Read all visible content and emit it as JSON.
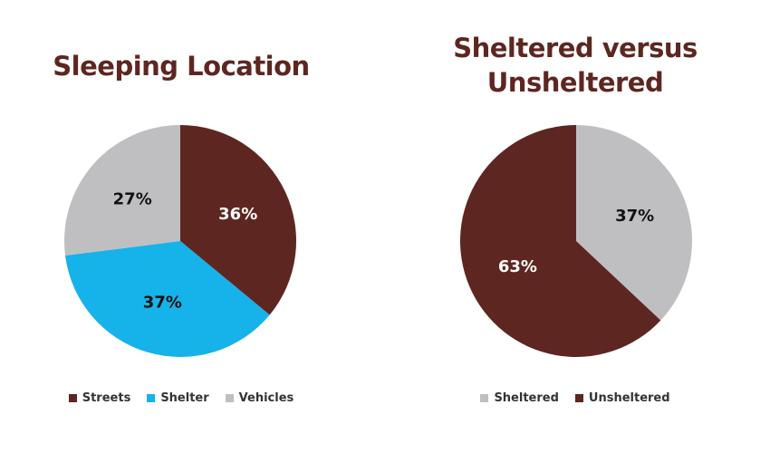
{
  "chart_data": [
    {
      "type": "pie",
      "title": "Sleeping Location",
      "categories": [
        "Streets",
        "Shelter",
        "Vehicles"
      ],
      "values": [
        36,
        37,
        27
      ],
      "labels": [
        "36%",
        "37%",
        "27%"
      ],
      "colors": [
        "#5e2620",
        "#16b2ea",
        "#bfbfc1"
      ],
      "label_colors": [
        "#ffffff",
        "#111111",
        "#111111"
      ],
      "legend_position": "bottom"
    },
    {
      "type": "pie",
      "title": "Sheltered versus Unsheltered",
      "categories": [
        "Sheltered",
        "Unsheltered"
      ],
      "values": [
        37,
        63
      ],
      "labels": [
        "37%",
        "63%"
      ],
      "colors": [
        "#bfbfc1",
        "#5e2620"
      ],
      "label_colors": [
        "#111111",
        "#ffffff"
      ],
      "legend_position": "bottom"
    }
  ]
}
